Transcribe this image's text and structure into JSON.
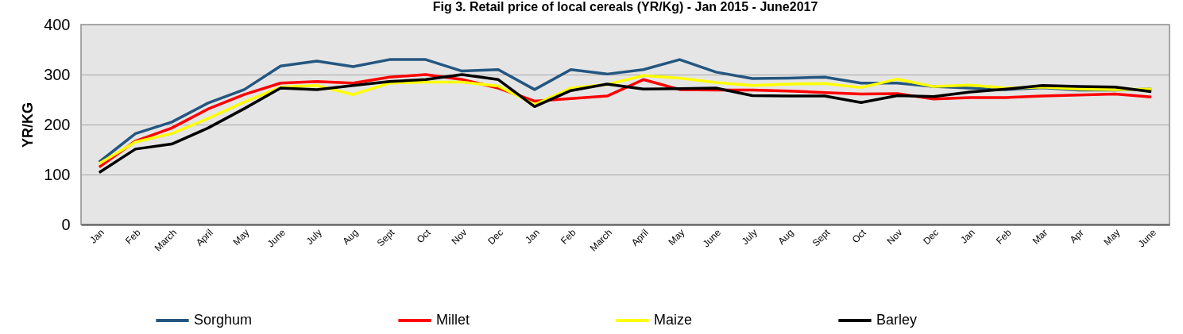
{
  "chart_data": {
    "type": "line",
    "title": "Fig 3. Retail price of local cereals (YR/Kg) - Jan 2015 - June2017",
    "ylabel": "YR/KG",
    "categories": [
      "Jan",
      "Feb",
      "March",
      "April",
      "May",
      "June",
      "July",
      "Aug",
      "Sept",
      "Oct",
      "Nov",
      "Dec",
      "Jan",
      "Feb",
      "March",
      "April",
      "May",
      "June",
      "July",
      "Aug",
      "Sept",
      "Oct",
      "Nov",
      "Dec",
      "Jan",
      "Feb",
      "Mar",
      "Apr",
      "May",
      "June"
    ],
    "series": [
      {
        "name": "Sorghum",
        "color": "#245680",
        "values": [
          125,
          182,
          205,
          243,
          270,
          317,
          327,
          316,
          330,
          330,
          307,
          310,
          270,
          310,
          301,
          310,
          330,
          305,
          292,
          293,
          295,
          283,
          283,
          276,
          273,
          270,
          274,
          269,
          269,
          271
        ]
      },
      {
        "name": "Millet",
        "color": "#ff0000",
        "values": [
          115,
          167,
          193,
          231,
          260,
          283,
          286,
          283,
          295,
          300,
          290,
          273,
          247,
          252,
          257,
          290,
          270,
          269,
          269,
          267,
          264,
          261,
          262,
          251,
          254,
          254,
          257,
          259,
          261,
          255
        ]
      },
      {
        "name": "Maize",
        "color": "#ffff00",
        "values": [
          122,
          165,
          182,
          212,
          245,
          275,
          278,
          260,
          283,
          285,
          285,
          277,
          240,
          273,
          280,
          298,
          293,
          284,
          278,
          281,
          282,
          274,
          291,
          276,
          279,
          273,
          275,
          271,
          270,
          271
        ]
      },
      {
        "name": "Barley",
        "color": "#000000",
        "values": [
          104,
          151,
          161,
          193,
          232,
          273,
          270,
          278,
          286,
          290,
          300,
          290,
          236,
          268,
          281,
          271,
          272,
          273,
          258,
          257,
          257,
          244,
          258,
          256,
          265,
          271,
          278,
          276,
          275,
          266
        ]
      }
    ],
    "ylim": [
      0,
      400
    ],
    "yticks": [
      0,
      100,
      200,
      300,
      400
    ],
    "grid": "y",
    "legend": "bottom",
    "line_style": "solid"
  }
}
